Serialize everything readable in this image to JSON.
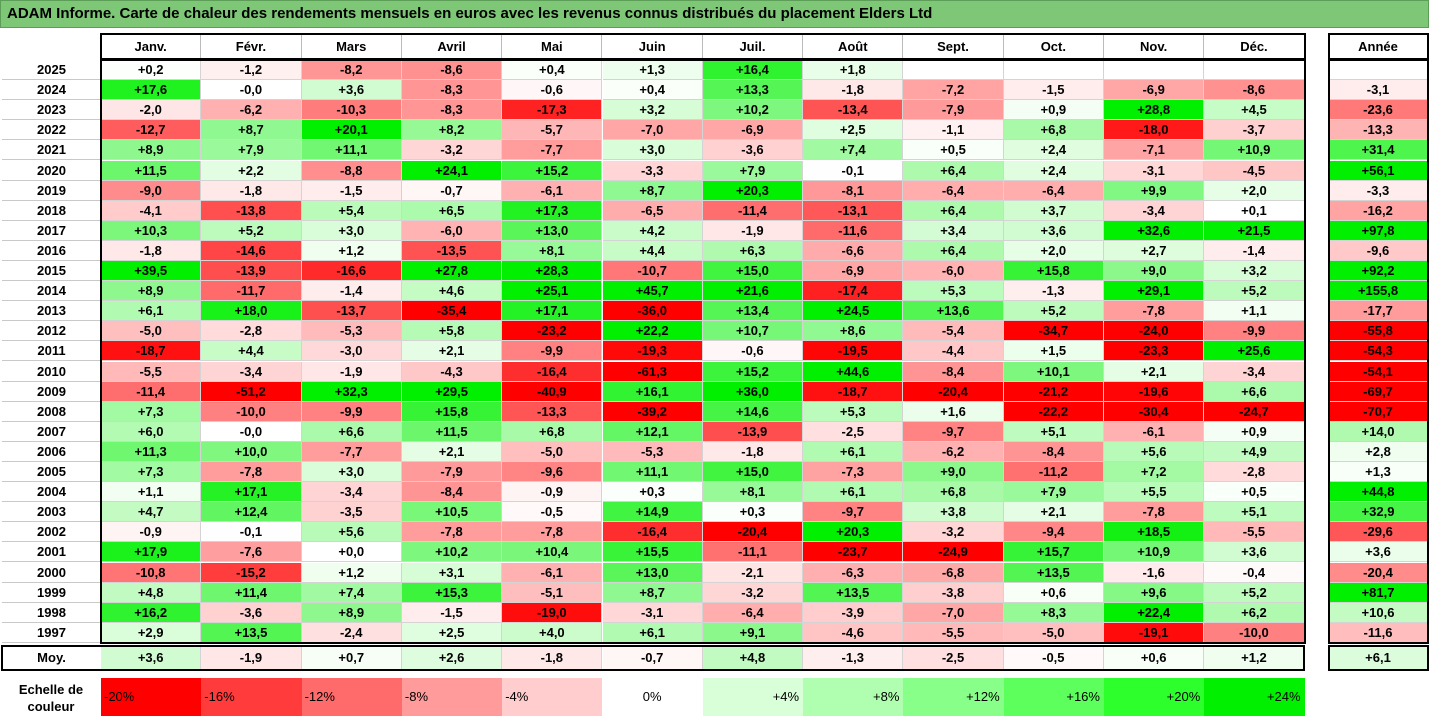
{
  "title": "ADAM Informe. Carte de chaleur des rendements mensuels en euros avec les revenus connus distribués du placement Elders Ltd",
  "chart_data": {
    "type": "heatmap",
    "columns": [
      "Janv.",
      "Févr.",
      "Mars",
      "Avril",
      "Mai",
      "Juin",
      "Juil.",
      "Août",
      "Sept.",
      "Oct.",
      "Nov.",
      "Déc."
    ],
    "year_header": "Année",
    "rows": [
      {
        "year": "2025",
        "months": [
          "+0,2",
          "-1,2",
          "-8,2",
          "-8,6",
          "+0,4",
          "+1,3",
          "+16,4",
          "+1,8",
          "",
          "",
          "",
          ""
        ],
        "annual": ""
      },
      {
        "year": "2024",
        "months": [
          "+17,6",
          "-0,0",
          "+3,6",
          "-8,3",
          "-0,6",
          "+0,4",
          "+13,3",
          "-1,8",
          "-7,2",
          "-1,5",
          "-6,9",
          "-8,6"
        ],
        "annual": "-3,1"
      },
      {
        "year": "2023",
        "months": [
          "-2,0",
          "-6,2",
          "-10,3",
          "-8,3",
          "-17,3",
          "+3,2",
          "+10,2",
          "-13,4",
          "-7,9",
          "+0,9",
          "+28,8",
          "+4,5"
        ],
        "annual": "-23,6"
      },
      {
        "year": "2022",
        "months": [
          "-12,7",
          "+8,7",
          "+20,1",
          "+8,2",
          "-5,7",
          "-7,0",
          "-6,9",
          "+2,5",
          "-1,1",
          "+6,8",
          "-18,0",
          "-3,7"
        ],
        "annual": "-13,3"
      },
      {
        "year": "2021",
        "months": [
          "+8,9",
          "+7,9",
          "+11,1",
          "-3,2",
          "-7,7",
          "+3,0",
          "-3,6",
          "+7,4",
          "+0,5",
          "+2,4",
          "-7,1",
          "+10,9"
        ],
        "annual": "+31,4"
      },
      {
        "year": "2020",
        "months": [
          "+11,5",
          "+2,2",
          "-8,8",
          "+24,1",
          "+15,2",
          "-3,3",
          "+7,9",
          "-0,1",
          "+6,4",
          "+2,4",
          "-3,1",
          "-4,5"
        ],
        "annual": "+56,1"
      },
      {
        "year": "2019",
        "months": [
          "-9,0",
          "-1,8",
          "-1,5",
          "-0,7",
          "-6,1",
          "+8,7",
          "+20,3",
          "-8,1",
          "-6,4",
          "-6,4",
          "+9,9",
          "+2,0"
        ],
        "annual": "-3,3"
      },
      {
        "year": "2018",
        "months": [
          "-4,1",
          "-13,8",
          "+5,4",
          "+6,5",
          "+17,3",
          "-6,5",
          "-11,4",
          "-13,1",
          "+6,4",
          "+3,7",
          "-3,4",
          "+0,1"
        ],
        "annual": "-16,2"
      },
      {
        "year": "2017",
        "months": [
          "+10,3",
          "+5,2",
          "+3,0",
          "-6,0",
          "+13,0",
          "+4,2",
          "-1,9",
          "-11,6",
          "+3,4",
          "+3,6",
          "+32,6",
          "+21,5"
        ],
        "annual": "+97,8"
      },
      {
        "year": "2016",
        "months": [
          "-1,8",
          "-14,6",
          "+1,2",
          "-13,5",
          "+8,1",
          "+4,4",
          "+6,3",
          "-6,6",
          "+6,4",
          "+2,0",
          "+2,7",
          "-1,4"
        ],
        "annual": "-9,6"
      },
      {
        "year": "2015",
        "months": [
          "+39,5",
          "-13,9",
          "-16,6",
          "+27,8",
          "+28,3",
          "-10,7",
          "+15,0",
          "-6,9",
          "-6,0",
          "+15,8",
          "+9,0",
          "+3,2"
        ],
        "annual": "+92,2"
      },
      {
        "year": "2014",
        "months": [
          "+8,9",
          "-11,7",
          "-1,4",
          "+4,6",
          "+25,1",
          "+45,7",
          "+21,6",
          "-17,4",
          "+5,3",
          "-1,3",
          "+29,1",
          "+5,2"
        ],
        "annual": "+155,8"
      },
      {
        "year": "2013",
        "months": [
          "+6,1",
          "+18,0",
          "-13,7",
          "-35,4",
          "+17,1",
          "-36,0",
          "+13,4",
          "+24,5",
          "+13,6",
          "+5,2",
          "-7,8",
          "+1,1"
        ],
        "annual": "-17,7"
      },
      {
        "year": "2012",
        "months": [
          "-5,0",
          "-2,8",
          "-5,3",
          "+5,8",
          "-23,2",
          "+22,2",
          "+10,7",
          "+8,6",
          "-5,4",
          "-34,7",
          "-24,0",
          "-9,9"
        ],
        "annual": "-55,8"
      },
      {
        "year": "2011",
        "months": [
          "-18,7",
          "+4,4",
          "-3,0",
          "+2,1",
          "-9,9",
          "-19,3",
          "-0,6",
          "-19,5",
          "-4,4",
          "+1,5",
          "-23,3",
          "+25,6"
        ],
        "annual": "-54,3"
      },
      {
        "year": "2010",
        "months": [
          "-5,5",
          "-3,4",
          "-1,9",
          "-4,3",
          "-16,4",
          "-61,3",
          "+15,2",
          "+44,6",
          "-8,4",
          "+10,1",
          "+2,1",
          "-3,4"
        ],
        "annual": "-54,1"
      },
      {
        "year": "2009",
        "months": [
          "-11,4",
          "-51,2",
          "+32,3",
          "+29,5",
          "-40,9",
          "+16,1",
          "+36,0",
          "-18,7",
          "-20,4",
          "-21,2",
          "-19,6",
          "+6,6"
        ],
        "annual": "-69,7"
      },
      {
        "year": "2008",
        "months": [
          "+7,3",
          "-10,0",
          "-9,9",
          "+15,8",
          "-13,3",
          "-39,2",
          "+14,6",
          "+5,3",
          "+1,6",
          "-22,2",
          "-30,4",
          "-24,7"
        ],
        "annual": "-70,7"
      },
      {
        "year": "2007",
        "months": [
          "+6,0",
          "-0,0",
          "+6,6",
          "+11,5",
          "+6,8",
          "+12,1",
          "-13,9",
          "-2,5",
          "-9,7",
          "+5,1",
          "-6,1",
          "+0,9"
        ],
        "annual": "+14,0"
      },
      {
        "year": "2006",
        "months": [
          "+11,3",
          "+10,0",
          "-7,7",
          "+2,1",
          "-5,0",
          "-5,3",
          "-1,8",
          "+6,1",
          "-6,2",
          "-8,4",
          "+5,6",
          "+4,9"
        ],
        "annual": "+2,8"
      },
      {
        "year": "2005",
        "months": [
          "+7,3",
          "-7,8",
          "+3,0",
          "-7,9",
          "-9,6",
          "+11,1",
          "+15,0",
          "-7,3",
          "+9,0",
          "-11,2",
          "+7,2",
          "-2,8"
        ],
        "annual": "+1,3"
      },
      {
        "year": "2004",
        "months": [
          "+1,1",
          "+17,1",
          "-3,4",
          "-8,4",
          "-0,9",
          "+0,3",
          "+8,1",
          "+6,1",
          "+6,8",
          "+7,9",
          "+5,5",
          "+0,5"
        ],
        "annual": "+44,8"
      },
      {
        "year": "2003",
        "months": [
          "+4,7",
          "+12,4",
          "-3,5",
          "+10,5",
          "-0,5",
          "+14,9",
          "+0,3",
          "-9,7",
          "+3,8",
          "+2,1",
          "-7,8",
          "+5,1"
        ],
        "annual": "+32,9"
      },
      {
        "year": "2002",
        "months": [
          "-0,9",
          "-0,1",
          "+5,6",
          "-7,8",
          "-7,8",
          "-16,4",
          "-20,4",
          "+20,3",
          "-3,2",
          "-9,4",
          "+18,5",
          "-5,5"
        ],
        "annual": "-29,6"
      },
      {
        "year": "2001",
        "months": [
          "+17,9",
          "-7,6",
          "+0,0",
          "+10,2",
          "+10,4",
          "+15,5",
          "-11,1",
          "-23,7",
          "-24,9",
          "+15,7",
          "+10,9",
          "+3,6"
        ],
        "annual": "+3,6"
      },
      {
        "year": "2000",
        "months": [
          "-10,8",
          "-15,2",
          "+1,2",
          "+3,1",
          "-6,1",
          "+13,0",
          "-2,1",
          "-6,3",
          "-6,8",
          "+13,5",
          "-1,6",
          "-0,4"
        ],
        "annual": "-20,4"
      },
      {
        "year": "1999",
        "months": [
          "+4,8",
          "+11,4",
          "+7,4",
          "+15,3",
          "-5,1",
          "+8,7",
          "-3,2",
          "+13,5",
          "-3,8",
          "+0,6",
          "+9,6",
          "+5,2"
        ],
        "annual": "+81,7"
      },
      {
        "year": "1998",
        "months": [
          "+16,2",
          "-3,6",
          "+8,9",
          "-1,5",
          "-19,0",
          "-3,1",
          "-6,4",
          "-3,9",
          "-7,0",
          "+8,3",
          "+22,4",
          "+6,2"
        ],
        "annual": "+10,6"
      },
      {
        "year": "1997",
        "months": [
          "+2,9",
          "+13,5",
          "-2,4",
          "+2,5",
          "+4,0",
          "+6,1",
          "+9,1",
          "-4,6",
          "-5,5",
          "-5,0",
          "-19,1",
          "-10,0"
        ],
        "annual": "-11,6"
      }
    ],
    "average": {
      "label": "Moy.",
      "months": [
        "+3,6",
        "-1,9",
        "+0,7",
        "+2,6",
        "-1,8",
        "-0,7",
        "+4,8",
        "-1,3",
        "-2,5",
        "-0,5",
        "+0,6",
        "+1,2"
      ],
      "annual": "+6,1"
    },
    "scale": {
      "label_line1": "Echelle de",
      "label_line2": "couleur",
      "items": [
        {
          "text": "-20%",
          "color": "#ff0000",
          "align": "left"
        },
        {
          "text": "-16%",
          "color": "#ff3b3b",
          "align": "left"
        },
        {
          "text": "-12%",
          "color": "#ff6a6a",
          "align": "left"
        },
        {
          "text": "-8%",
          "color": "#ff9b9b",
          "align": "left"
        },
        {
          "text": "-4%",
          "color": "#ffcdcd",
          "align": "left"
        },
        {
          "text": "0%",
          "color": "#ffffff",
          "align": "center"
        },
        {
          "text": "+4%",
          "color": "#d9ffd9",
          "align": "right"
        },
        {
          "text": "+8%",
          "color": "#b0ffb0",
          "align": "right"
        },
        {
          "text": "+12%",
          "color": "#88ff88",
          "align": "right"
        },
        {
          "text": "+16%",
          "color": "#5cff5c",
          "align": "right"
        },
        {
          "text": "+20%",
          "color": "#2dff2d",
          "align": "right"
        },
        {
          "text": "+24%",
          "color": "#00f000",
          "align": "right"
        }
      ]
    },
    "colors": {
      "negative_extreme": "#ff0000",
      "neutral": "#ffffff",
      "positive_extreme": "#00f000",
      "title_bar": "#7dc776"
    }
  }
}
